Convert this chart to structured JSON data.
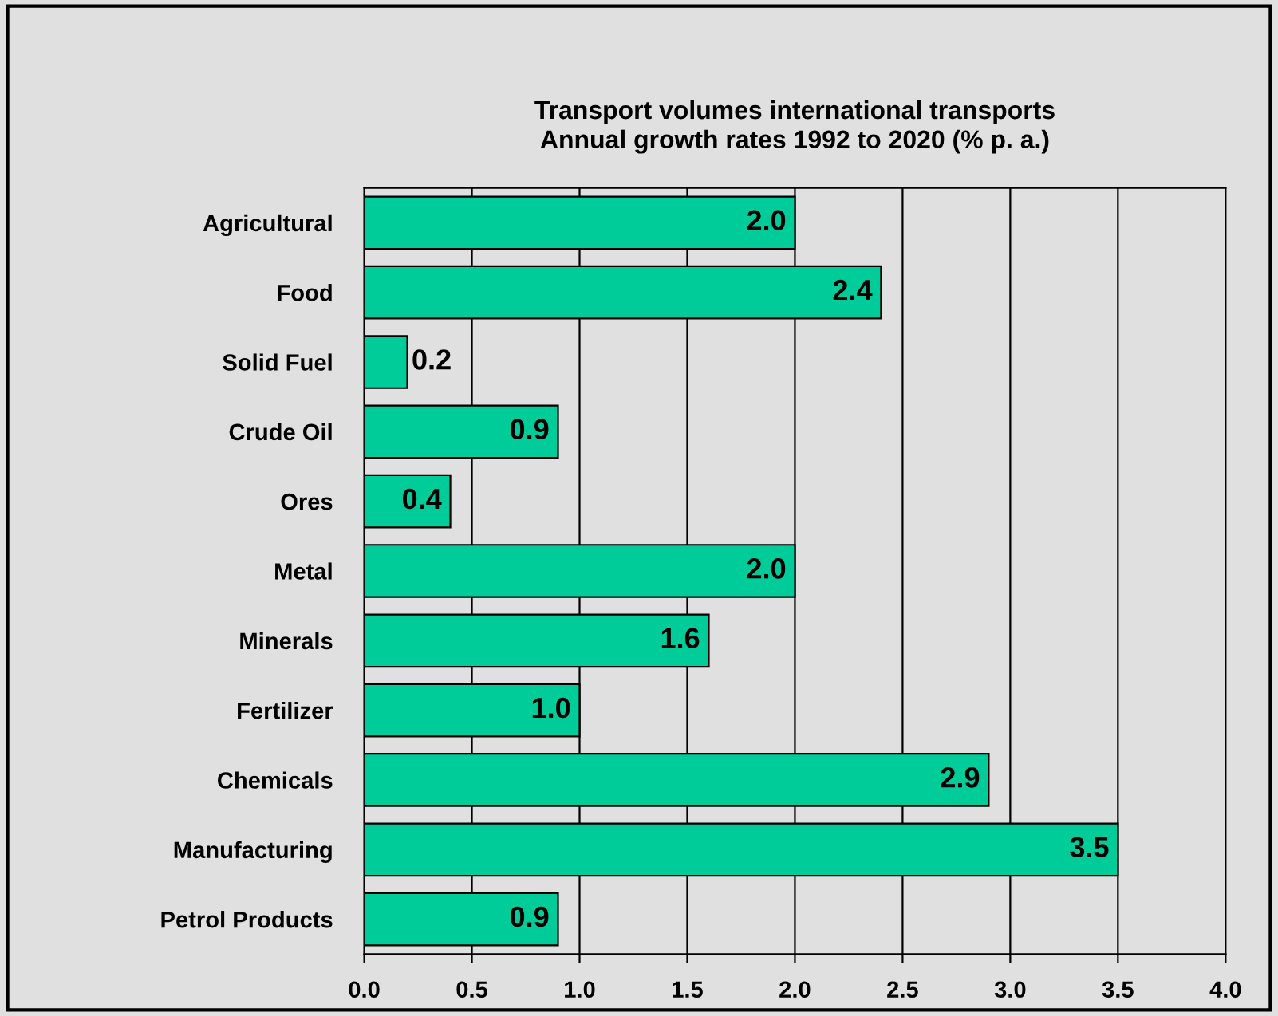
{
  "chart_data": {
    "type": "bar",
    "orientation": "horizontal",
    "title": "Transport volumes international transports\nAnnual growth rates 1992 to 2020 (% p. a.)",
    "categories": [
      "Agricultural",
      "Food",
      "Solid Fuel",
      "Crude Oil",
      "Ores",
      "Metal",
      "Minerals",
      "Fertilizer",
      "Chemicals",
      "Manufacturing",
      "Petrol Products"
    ],
    "values": [
      2.0,
      2.4,
      0.2,
      0.9,
      0.4,
      2.0,
      1.6,
      1.0,
      2.9,
      3.5,
      0.9
    ],
    "value_labels": [
      "2.0",
      "2.4",
      "0.2",
      "0.9",
      "0.4",
      "2.0",
      "1.6",
      "1.0",
      "2.9",
      "3.5",
      "0.9"
    ],
    "color": "#00cc99",
    "xlim": [
      0,
      4
    ],
    "xticks": [
      {
        "value": 0,
        "label": "0.0"
      },
      {
        "value": 0.5,
        "label": "0.5"
      },
      {
        "value": 1,
        "label": "1.0"
      },
      {
        "value": 1.5,
        "label": "1.5"
      },
      {
        "value": 2,
        "label": "2.0"
      },
      {
        "value": 2.5,
        "label": "2.5"
      },
      {
        "value": 3,
        "label": "3.0"
      },
      {
        "value": 3.5,
        "label": "3.5"
      },
      {
        "value": 4,
        "label": "4.0"
      }
    ],
    "grid": "x",
    "legend": false
  }
}
